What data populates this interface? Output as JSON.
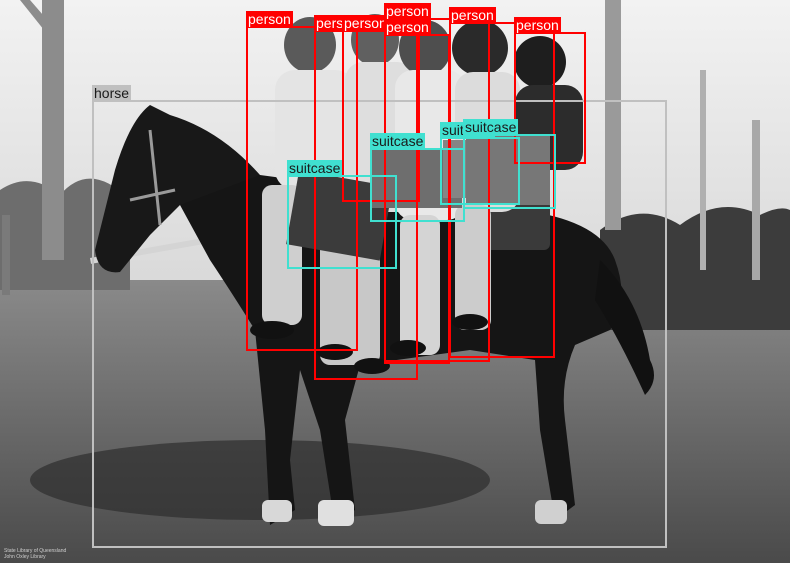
{
  "colors": {
    "person": "#ff0000",
    "suitcase": "#40e0d0",
    "horse": "#c0c0c0",
    "label_text_light": "#ffffff",
    "label_text_dark": "#1a1a1a"
  },
  "detections": [
    {
      "label": "horse",
      "category": "horse"
    },
    {
      "label": "person",
      "category": "person"
    },
    {
      "label": "person",
      "category": "person"
    },
    {
      "label": "person",
      "category": "person"
    },
    {
      "label": "person",
      "category": "person"
    },
    {
      "label": "person",
      "category": "person"
    },
    {
      "label": "person",
      "category": "person"
    },
    {
      "label": "person",
      "category": "person"
    },
    {
      "label": "suitcase",
      "category": "suitcase"
    },
    {
      "label": "suitcase",
      "category": "suitcase"
    },
    {
      "label": "suitcase",
      "category": "suitcase"
    },
    {
      "label": "suitcase",
      "category": "suitcase"
    }
  ],
  "photo_caption": {
    "line1": "State Library of Queensland",
    "line2": "John Oxley Library"
  }
}
